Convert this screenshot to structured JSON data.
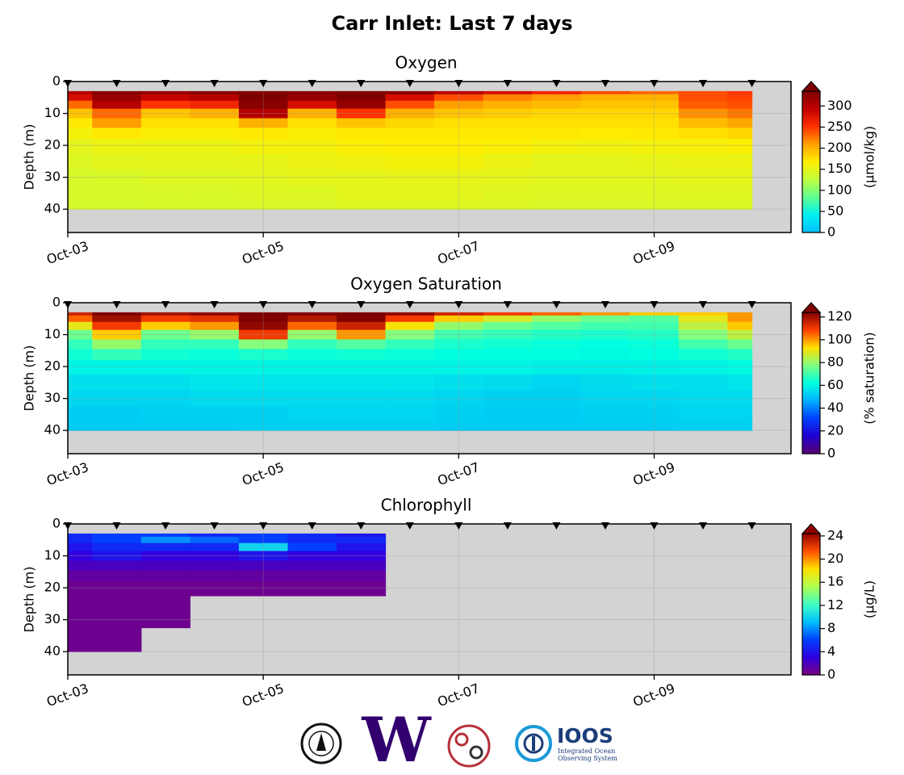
{
  "title": "Carr Inlet: Last 7 days",
  "chart_data": [
    {
      "type": "heatmap",
      "title": "Oxygen",
      "ylabel": "Depth (m)",
      "x": [
        3,
        3.5,
        4,
        4.5,
        5,
        5.5,
        6,
        6.5,
        7,
        7.5,
        8,
        8.5,
        9,
        9.5,
        10
      ],
      "y": [
        3,
        5,
        7,
        10,
        13,
        16,
        20,
        25,
        30,
        35,
        40
      ],
      "z": [
        [
          300,
          330,
          320,
          330,
          340,
          330,
          340,
          330,
          300,
          280,
          260,
          240,
          230,
          240,
          250
        ],
        [
          280,
          320,
          290,
          300,
          335,
          320,
          335,
          280,
          240,
          220,
          210,
          200,
          200,
          240,
          245
        ],
        [
          230,
          300,
          250,
          260,
          330,
          280,
          320,
          240,
          210,
          200,
          195,
          190,
          190,
          235,
          240
        ],
        [
          190,
          230,
          190,
          200,
          300,
          200,
          250,
          200,
          190,
          185,
          180,
          180,
          180,
          215,
          225
        ],
        [
          170,
          210,
          175,
          175,
          200,
          175,
          190,
          180,
          175,
          175,
          175,
          175,
          175,
          195,
          205
        ],
        [
          160,
          170,
          165,
          165,
          170,
          165,
          170,
          170,
          170,
          170,
          170,
          168,
          170,
          175,
          180
        ],
        [
          150,
          155,
          155,
          155,
          160,
          160,
          165,
          168,
          168,
          165,
          160,
          158,
          160,
          162,
          165
        ],
        [
          145,
          148,
          150,
          150,
          152,
          155,
          158,
          160,
          160,
          155,
          150,
          150,
          152,
          155,
          155
        ],
        [
          140,
          142,
          145,
          145,
          148,
          150,
          150,
          152,
          152,
          150,
          148,
          148,
          148,
          150,
          150
        ],
        [
          140,
          140,
          142,
          142,
          145,
          145,
          148,
          148,
          148,
          146,
          145,
          145,
          145,
          146,
          146
        ],
        [
          138,
          138,
          140,
          140,
          142,
          142,
          145,
          145,
          145,
          144,
          142,
          142,
          142,
          143,
          143
        ]
      ],
      "xlim": [
        3,
        10.4
      ],
      "xticks": [
        {
          "value": 3,
          "label": "Oct-03"
        },
        {
          "value": 5,
          "label": "Oct-05"
        },
        {
          "value": 7,
          "label": "Oct-07"
        },
        {
          "value": 9,
          "label": "Oct-09"
        }
      ],
      "ylim": [
        47.3,
        0
      ],
      "yticks": [
        0,
        10,
        20,
        30,
        40
      ],
      "grid": true,
      "background": "#d3d3d3",
      "colorbar": {
        "label": "(μmol/kg)",
        "clim": [
          0,
          335
        ],
        "ticks": [
          0,
          50,
          100,
          150,
          200,
          250,
          300
        ],
        "colormap": [
          "#00c0ff",
          "#00f0f0",
          "#60ff90",
          "#c0ff40",
          "#ffee00",
          "#ffa000",
          "#ff3000",
          "#c00000",
          "#800000"
        ]
      }
    },
    {
      "type": "heatmap",
      "title": "Oxygen Saturation",
      "ylabel": "Depth (m)",
      "x": [
        3,
        3.5,
        4,
        4.5,
        5,
        5.5,
        6,
        6.5,
        7,
        7.5,
        8,
        8.5,
        9,
        9.5,
        10
      ],
      "y": [
        3,
        5,
        7,
        10,
        13,
        16,
        20,
        25,
        30,
        35,
        40
      ],
      "z": [
        [
          115,
          124,
          120,
          122,
          128,
          125,
          128,
          122,
          115,
          110,
          105,
          100,
          95,
          95,
          100
        ],
        [
          105,
          120,
          110,
          112,
          125,
          118,
          125,
          110,
          95,
          88,
          80,
          75,
          72,
          90,
          100
        ],
        [
          90,
          110,
          95,
          100,
          122,
          105,
          115,
          92,
          80,
          75,
          72,
          70,
          70,
          85,
          95
        ],
        [
          75,
          95,
          75,
          80,
          110,
          80,
          100,
          78,
          70,
          68,
          66,
          65,
          66,
          78,
          85
        ],
        [
          68,
          80,
          68,
          68,
          78,
          68,
          72,
          68,
          65,
          64,
          63,
          62,
          63,
          70,
          75
        ],
        [
          64,
          68,
          64,
          63,
          65,
          63,
          64,
          63,
          62,
          62,
          62,
          61,
          62,
          64,
          66
        ],
        [
          60,
          60,
          60,
          60,
          60,
          60,
          60,
          60,
          60,
          60,
          59,
          59,
          59,
          60,
          61
        ],
        [
          56,
          56,
          56,
          57,
          57,
          57,
          57,
          57,
          56,
          55,
          54,
          55,
          56,
          56,
          57
        ],
        [
          54,
          54,
          54,
          55,
          55,
          55,
          55,
          55,
          54,
          53,
          53,
          54,
          54,
          55,
          55
        ],
        [
          52,
          52,
          53,
          53,
          53,
          54,
          54,
          54,
          53,
          52,
          52,
          53,
          53,
          54,
          54
        ],
        [
          52,
          52,
          52,
          52,
          53,
          53,
          53,
          53,
          52,
          52,
          52,
          52,
          52,
          53,
          53
        ]
      ],
      "xlim": [
        3,
        10.4
      ],
      "xticks": [
        {
          "value": 3,
          "label": "Oct-03"
        },
        {
          "value": 5,
          "label": "Oct-05"
        },
        {
          "value": 7,
          "label": "Oct-07"
        },
        {
          "value": 9,
          "label": "Oct-09"
        }
      ],
      "ylim": [
        47.3,
        0
      ],
      "yticks": [
        0,
        10,
        20,
        30,
        40
      ],
      "grid": true,
      "background": "#d3d3d3",
      "colorbar": {
        "label": "(% saturation)",
        "clim": [
          0,
          124
        ],
        "ticks": [
          0,
          20,
          40,
          60,
          80,
          100,
          120
        ],
        "colormap": [
          "#5a0070",
          "#2000d0",
          "#0040ff",
          "#00b0ff",
          "#00ffe0",
          "#80ff80",
          "#ffe000",
          "#ff4000",
          "#800000"
        ]
      }
    },
    {
      "type": "heatmap",
      "title": "Chlorophyll",
      "ylabel": "Depth (m)",
      "x": [
        3,
        3.5,
        4,
        4.5,
        5,
        5.5,
        6,
        6.5,
        7,
        7.5,
        8,
        8.5,
        9,
        9.5,
        10
      ],
      "y": [
        3,
        5,
        7,
        10,
        13,
        16,
        20,
        25,
        30,
        35,
        40
      ],
      "z": [
        [
          5,
          6,
          6,
          5,
          6,
          5,
          4,
          null,
          null,
          null,
          null,
          null,
          null,
          null,
          null
        ],
        [
          5,
          6,
          8,
          7,
          6,
          5,
          5,
          null,
          null,
          null,
          null,
          null,
          null,
          null,
          null
        ],
        [
          4,
          5,
          5,
          5,
          10,
          6,
          4,
          null,
          null,
          null,
          null,
          null,
          null,
          null,
          null
        ],
        [
          3,
          4,
          3,
          3,
          4,
          3,
          3,
          null,
          null,
          null,
          null,
          null,
          null,
          null,
          null
        ],
        [
          2,
          2,
          2,
          2,
          2,
          2,
          2,
          null,
          null,
          null,
          null,
          null,
          null,
          null,
          null
        ],
        [
          1,
          1,
          1,
          1,
          1,
          1,
          1,
          null,
          null,
          null,
          null,
          null,
          null,
          null,
          null
        ],
        [
          0.5,
          0.5,
          0.5,
          0.5,
          0.5,
          0.5,
          0.5,
          null,
          null,
          null,
          null,
          null,
          null,
          null,
          null
        ],
        [
          0.5,
          0.5,
          0.5,
          null,
          null,
          null,
          null,
          null,
          null,
          null,
          null,
          null,
          null,
          null,
          null
        ],
        [
          0.5,
          0.5,
          0.5,
          null,
          null,
          null,
          null,
          null,
          null,
          null,
          null,
          null,
          null,
          null,
          null
        ],
        [
          0.5,
          0.5,
          null,
          null,
          null,
          null,
          null,
          null,
          null,
          null,
          null,
          null,
          null,
          null,
          null
        ],
        [
          0.5,
          0.5,
          null,
          null,
          null,
          null,
          null,
          null,
          null,
          null,
          null,
          null,
          null,
          null,
          null
        ]
      ],
      "xlim": [
        3,
        10.4
      ],
      "xticks": [
        {
          "value": 3,
          "label": "Oct-03"
        },
        {
          "value": 5,
          "label": "Oct-05"
        },
        {
          "value": 7,
          "label": "Oct-07"
        },
        {
          "value": 9,
          "label": "Oct-09"
        }
      ],
      "ylim": [
        47.3,
        0
      ],
      "yticks": [
        0,
        10,
        20,
        30,
        40
      ],
      "grid": true,
      "background": "#d3d3d3",
      "colorbar": {
        "label": "(μg/L)",
        "clim": [
          0,
          24.4
        ],
        "ticks": [
          0,
          4,
          8,
          12,
          16,
          20,
          24
        ],
        "colormap": [
          "#7a0080",
          "#3000e0",
          "#0040ff",
          "#00c0ff",
          "#40ffc0",
          "#b0ff50",
          "#ffe000",
          "#ff5000",
          "#900000"
        ]
      }
    }
  ],
  "logos": {
    "uw": "W",
    "ioos": "IOOS",
    "ioos_tagline": [
      "Integrated Ocean",
      "Observing System"
    ]
  }
}
